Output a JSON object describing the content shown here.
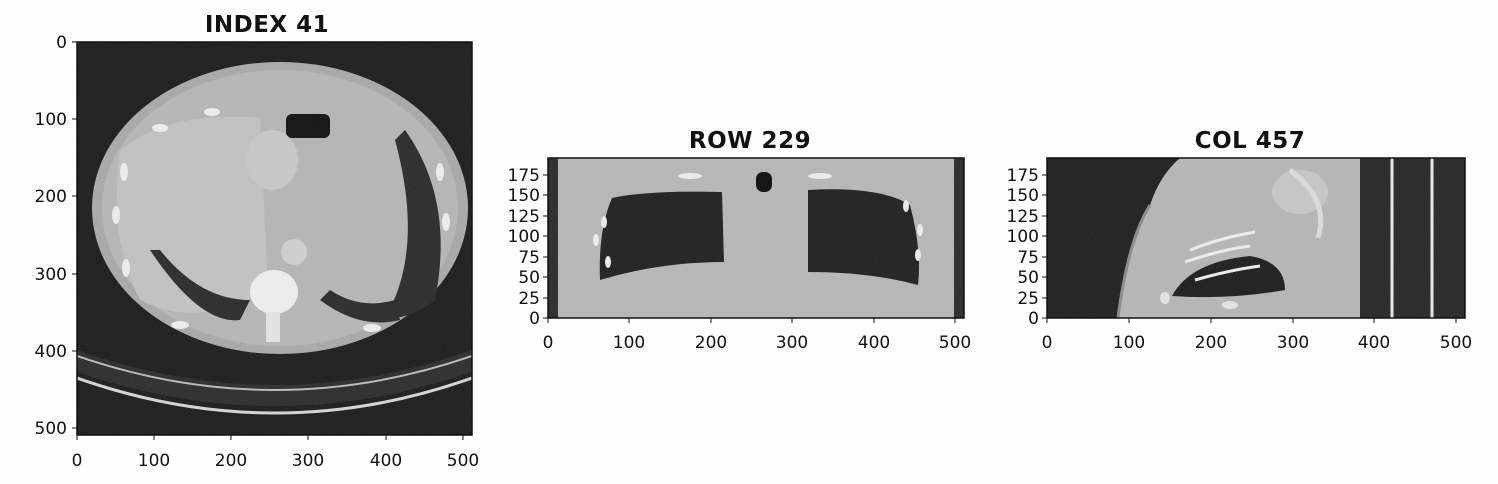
{
  "panels": [
    {
      "id": "axial",
      "title": "INDEX 41",
      "x_ticks": [
        "0",
        "100",
        "200",
        "300",
        "400",
        "500"
      ],
      "y_ticks": [
        "0",
        "100",
        "200",
        "300",
        "400",
        "500"
      ]
    },
    {
      "id": "coronal",
      "title": "ROW 229",
      "x_ticks": [
        "0",
        "100",
        "200",
        "300",
        "400",
        "500"
      ],
      "y_ticks": [
        "0",
        "25",
        "50",
        "75",
        "100",
        "125",
        "150",
        "175"
      ]
    },
    {
      "id": "sagittal",
      "title": "COL 457",
      "x_ticks": [
        "0",
        "100",
        "200",
        "300",
        "400",
        "500"
      ],
      "y_ticks": [
        "0",
        "25",
        "50",
        "75",
        "100",
        "125",
        "150",
        "175"
      ]
    }
  ],
  "colors": {
    "background": "#fefefe",
    "air": "#1b1b1b",
    "soft_tissue": "#b4b4b4",
    "bone": "#f2f2f2",
    "lung": "#222222",
    "axis": "#111111"
  }
}
